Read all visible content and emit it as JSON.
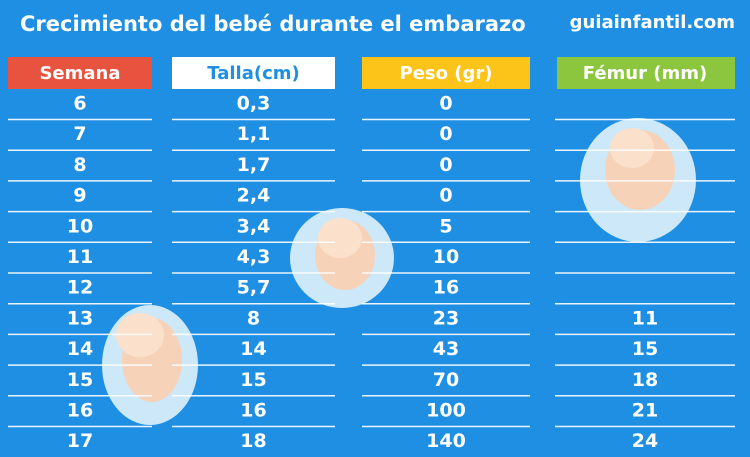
{
  "header": {
    "title": "Crecimiento del bebé durante el embarazo",
    "brand": "guiainfantil.com"
  },
  "table": {
    "columns": [
      "Semana",
      "Talla(cm)",
      "Peso (gr)",
      "Fémur (mm)"
    ],
    "rows": [
      [
        "6",
        "0,3",
        "0",
        null
      ],
      [
        "7",
        "1,1",
        "0",
        null
      ],
      [
        "8",
        "1,7",
        "0",
        null
      ],
      [
        "9",
        "2,4",
        "0",
        null
      ],
      [
        "10",
        "3,4",
        "5",
        null
      ],
      [
        "11",
        "4,3",
        "10",
        null
      ],
      [
        "12",
        "5,7",
        "16",
        null
      ],
      [
        "13",
        "8",
        "23",
        "11"
      ],
      [
        "14",
        "14",
        "43",
        "15"
      ],
      [
        "15",
        "15",
        "70",
        "18"
      ],
      [
        "16",
        "16",
        "100",
        "21"
      ],
      [
        "17",
        "18",
        "140",
        "24"
      ]
    ]
  }
}
